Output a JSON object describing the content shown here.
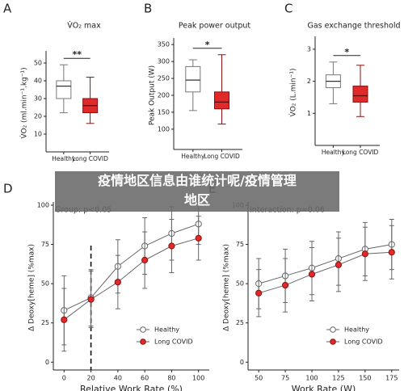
{
  "chart_data": [
    {
      "type": "box",
      "panel": "A",
      "title": "V̇O₂ max",
      "ylabel": "V̇O₂ (ml.min⁻¹.kg⁻¹)",
      "significance": "**",
      "categories": [
        "Healthy",
        "Long COVID"
      ],
      "boxes": [
        {
          "min": 22,
          "q1": 30,
          "median": 37,
          "q3": 40,
          "max": 49,
          "color": "#ffffff"
        },
        {
          "min": 16,
          "q1": 22,
          "median": 26,
          "q3": 30,
          "max": 42,
          "color": "#e02a2a"
        }
      ],
      "ylim": [
        0,
        55
      ],
      "yticks": [
        10,
        20,
        30,
        40,
        50
      ]
    },
    {
      "type": "box",
      "panel": "B",
      "title": "Peak power output",
      "ylabel": "Peak Output (W)",
      "significance": "*",
      "categories": [
        "Healthy",
        "Long COVID"
      ],
      "boxes": [
        {
          "min": 155,
          "q1": 210,
          "median": 245,
          "q3": 285,
          "max": 305,
          "color": "#ffffff"
        },
        {
          "min": 115,
          "q1": 160,
          "median": 180,
          "q3": 210,
          "max": 320,
          "color": "#e02a2a"
        }
      ],
      "ylim": [
        40,
        360
      ],
      "yticks": [
        100,
        150,
        200,
        250,
        300,
        350
      ]
    },
    {
      "type": "box",
      "panel": "C",
      "title": "Gas exchange threshold",
      "ylabel": "V̇O₂ (L.min⁻¹)",
      "significance": "*",
      "categories": [
        "Healthy",
        "Long COVID"
      ],
      "boxes": [
        {
          "min": 1.3,
          "q1": 1.8,
          "median": 2.0,
          "q3": 2.2,
          "max": 2.6,
          "color": "#ffffff"
        },
        {
          "min": 0.9,
          "q1": 1.35,
          "median": 1.55,
          "q3": 1.85,
          "max": 2.5,
          "color": "#e02a2a"
        }
      ],
      "ylim": [
        0,
        3.3
      ],
      "yticks": [
        1,
        2,
        3
      ]
    },
    {
      "type": "line",
      "panel": "D",
      "xlabel": "Relative Work Rate (%)",
      "ylabel": "Δ Deoxy[heme] (%max)",
      "annotation": "Group: p<0.05",
      "vline": 20,
      "x": [
        0,
        20,
        40,
        60,
        80,
        100
      ],
      "xlim": [
        -8,
        108
      ],
      "xticks": [
        0,
        20,
        40,
        60,
        80,
        100
      ],
      "ylim": [
        -5,
        100
      ],
      "yticks": [
        0,
        25,
        50,
        75,
        100
      ],
      "legend": "lower right",
      "series": [
        {
          "name": "Healthy",
          "color": "#ffffff",
          "values": [
            33,
            41,
            61,
            74,
            82,
            88
          ],
          "errors": [
            22,
            18,
            17,
            18,
            17,
            13
          ]
        },
        {
          "name": "Long COVID",
          "color": "#e02a2a",
          "values": [
            27,
            40,
            51,
            65,
            74,
            79
          ],
          "errors": [
            20,
            18,
            17,
            18,
            17,
            14
          ]
        }
      ]
    },
    {
      "type": "line",
      "panel": "E",
      "xlabel": "Work Rate (W)",
      "ylabel": "Δ Deoxy[heme] (%max)",
      "annotation": "Interaction: p=0.06",
      "x": [
        50,
        75,
        100,
        125,
        150,
        175
      ],
      "xlim": [
        40,
        182
      ],
      "xticks": [
        50,
        75,
        100,
        125,
        150,
        175
      ],
      "ylim": [
        -5,
        100
      ],
      "yticks": [
        0,
        25,
        50,
        75,
        100
      ],
      "legend": "lower right",
      "series": [
        {
          "name": "Healthy",
          "color": "#ffffff",
          "values": [
            50,
            55,
            60,
            66,
            72,
            75
          ],
          "errors": [
            16,
            17,
            17,
            17,
            17,
            16
          ]
        },
        {
          "name": "Long COVID",
          "color": "#e02a2a",
          "values": [
            44,
            49,
            56,
            62,
            69,
            70
          ],
          "errors": [
            15,
            17,
            17,
            17,
            17,
            17
          ]
        }
      ]
    }
  ],
  "overlay": {
    "lines": [
      "疫情地区信息由谁统计呢/疫情管理",
      "地区"
    ]
  }
}
